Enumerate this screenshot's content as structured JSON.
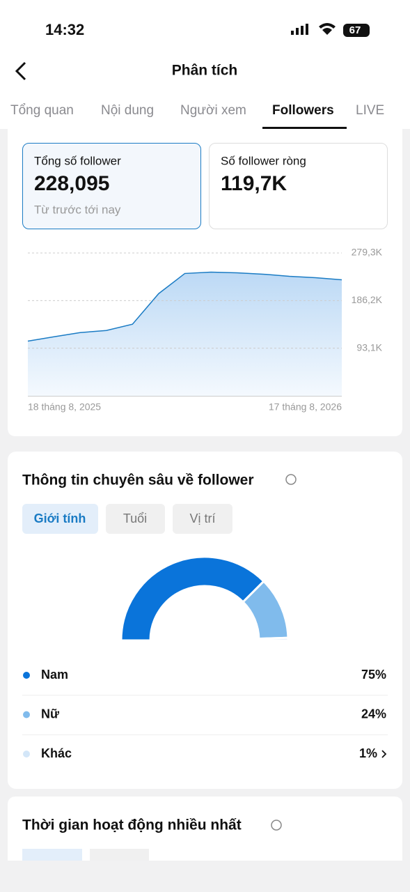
{
  "status_bar": {
    "time": "14:32",
    "battery": "67"
  },
  "header": {
    "title": "Phân tích"
  },
  "tabs": [
    "Tổng quan",
    "Nội dung",
    "Người xem",
    "Followers",
    "LIVE"
  ],
  "summary": [
    {
      "label": "Tổng số follower",
      "value": "228,095",
      "note": "Từ trước tới nay"
    },
    {
      "label": "Số follower ròng",
      "value": "119,7K"
    }
  ],
  "chart_data": [
    {
      "type": "line",
      "categories": [
        "18 tháng 8, 2025",
        null,
        null,
        null,
        null,
        null,
        null,
        null,
        null,
        null,
        null,
        null,
        "17 tháng 8, 2026"
      ],
      "series": [
        {
          "color": "#1a7bc4",
          "values": [
            107000,
            115500,
            123700,
            127700,
            140000,
            199800,
            239200,
            241900,
            240500,
            237800,
            233700,
            231000,
            226900
          ]
        }
      ],
      "ylim": [
        0,
        279300
      ],
      "yticks": [
        {
          "value": 93100,
          "label": "93,1K"
        },
        {
          "value": 186200,
          "label": "186,2K"
        },
        {
          "value": 279300,
          "label": "279,3K"
        }
      ],
      "grid": true
    },
    {
      "type": "pie",
      "categories": [
        "Nam",
        "Nữ",
        "Khác"
      ],
      "values": [
        75,
        24,
        1
      ],
      "value_labels": [
        "75%",
        "24%",
        "1%"
      ],
      "colors": [
        "#0a74da",
        "#80bbec",
        "#d3e6f8"
      ]
    }
  ],
  "insights": {
    "title": "Thông tin chuyên sâu về follower",
    "filters": [
      "Giới tính",
      "Tuổi",
      "Vị trí"
    ]
  },
  "activity": {
    "title": "Thời gian hoạt động nhiều nhất"
  }
}
